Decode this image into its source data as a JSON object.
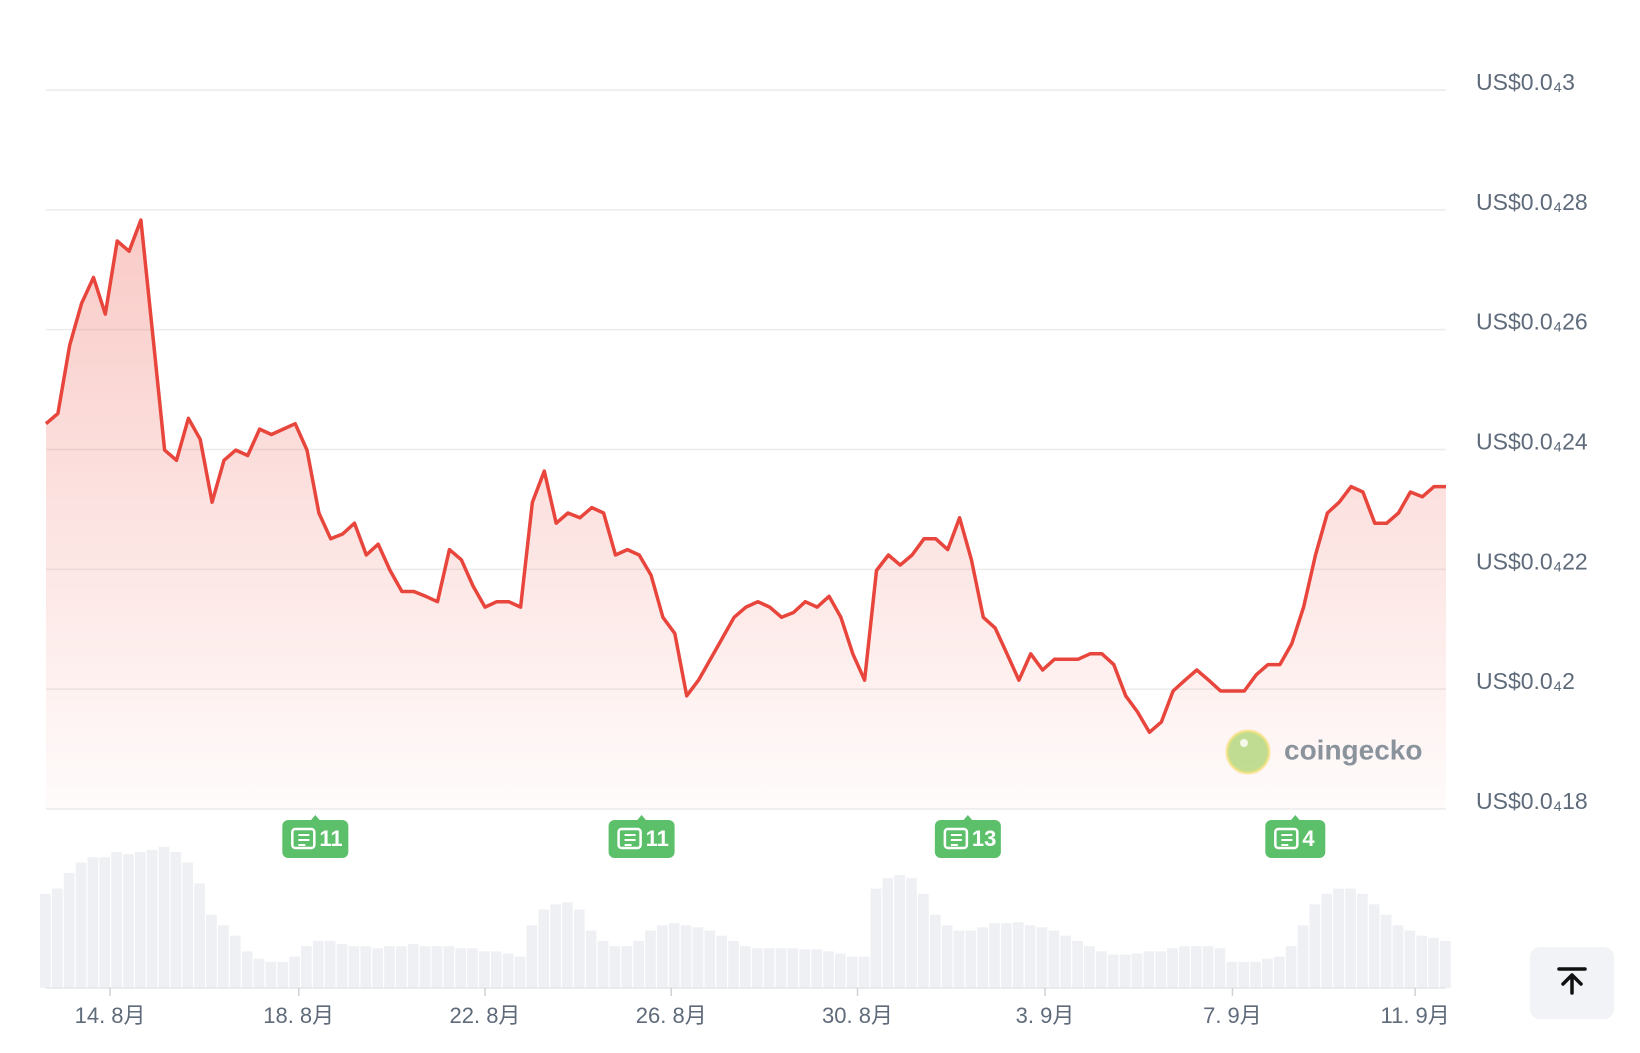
{
  "chart_data": {
    "type": "line",
    "xlim": [
      0,
      118
    ],
    "xticks": [
      {
        "value": 5.4,
        "label": "14. 8月"
      },
      {
        "value": 21.3,
        "label": "18. 8月"
      },
      {
        "value": 37,
        "label": "22. 8月"
      },
      {
        "value": 52.7,
        "label": "26. 8月"
      },
      {
        "value": 68.4,
        "label": "30. 8月"
      },
      {
        "value": 84.2,
        "label": "3. 9月"
      },
      {
        "value": 100,
        "label": "7. 9月"
      },
      {
        "value": 115.4,
        "label": "11. 9月"
      }
    ],
    "ylim": [
      1.8e-06,
      3e-06
    ],
    "yticks": [
      {
        "value": 3e-06,
        "label": "US$0.0₄3"
      },
      {
        "value": 2.8e-06,
        "label": "US$0.0₄28"
      },
      {
        "value": 2.6e-06,
        "label": "US$0.0₄26"
      },
      {
        "value": 2.4e-06,
        "label": "US$0.0₄24"
      },
      {
        "value": 2.2e-06,
        "label": "US$0.0₄22"
      },
      {
        "value": 2e-06,
        "label": "US$0.0₄2"
      },
      {
        "value": 1.8e-06,
        "label": "US$0.0₄18"
      }
    ],
    "grid": true,
    "color": "#e8453c",
    "values": [
      2.443e-06,
      2.46e-06,
      2.574e-06,
      2.644e-06,
      2.687e-06,
      2.626e-06,
      2.748e-06,
      2.731e-06,
      2.783e-06,
      2.591e-06,
      2.399e-06,
      2.382e-06,
      2.452e-06,
      2.417e-06,
      2.312e-06,
      2.382e-06,
      2.399e-06,
      2.39e-06,
      2.434e-06,
      2.425e-06,
      2.434e-06,
      2.443e-06,
      2.399e-06,
      2.294e-06,
      2.251e-06,
      2.259e-06,
      2.277e-06,
      2.224e-06,
      2.242e-06,
      2.198e-06,
      2.163e-06,
      2.163e-06,
      2.155e-06,
      2.146e-06,
      2.233e-06,
      2.216e-06,
      2.172e-06,
      2.137e-06,
      2.146e-06,
      2.146e-06,
      2.137e-06,
      2.312e-06,
      2.364e-06,
      2.277e-06,
      2.294e-06,
      2.286e-06,
      2.303e-06,
      2.294e-06,
      2.224e-06,
      2.233e-06,
      2.224e-06,
      2.19e-06,
      2.12e-06,
      2.093e-06,
      1.989e-06,
      2.015e-06,
      2.05e-06,
      2.085e-06,
      2.12e-06,
      2.137e-06,
      2.146e-06,
      2.137e-06,
      2.12e-06,
      2.128e-06,
      2.146e-06,
      2.137e-06,
      2.155e-06,
      2.12e-06,
      2.059e-06,
      2.015e-06,
      2.198e-06,
      2.224e-06,
      2.207e-06,
      2.224e-06,
      2.251e-06,
      2.251e-06,
      2.233e-06,
      2.286e-06,
      2.216e-06,
      2.12e-06,
      2.102e-06,
      2.059e-06,
      2.015e-06,
      2.059e-06,
      2.032e-06,
      2.05e-06,
      2.05e-06,
      2.05e-06,
      2.059e-06,
      2.059e-06,
      2.041e-06,
      1.989e-06,
      1.962e-06,
      1.928e-06,
      1.945e-06,
      1.997e-06,
      2.015e-06,
      2.032e-06,
      2.015e-06,
      1.997e-06,
      1.997e-06,
      1.997e-06,
      2.024e-06,
      2.041e-06,
      2.041e-06,
      2.076e-06,
      2.137e-06,
      2.224e-06,
      2.294e-06,
      2.312e-06,
      2.338e-06,
      2.329e-06,
      2.277e-06,
      2.277e-06,
      2.294e-06,
      2.329e-06,
      2.321e-06,
      2.338e-06,
      2.338e-06
    ],
    "volume": [
      90,
      95,
      110,
      120,
      125,
      125,
      130,
      128,
      130,
      132,
      135,
      130,
      120,
      100,
      70,
      60,
      50,
      35,
      28,
      25,
      25,
      30,
      40,
      45,
      45,
      42,
      40,
      40,
      38,
      40,
      40,
      42,
      40,
      40,
      40,
      38,
      38,
      35,
      35,
      33,
      30,
      60,
      75,
      80,
      82,
      75,
      55,
      45,
      40,
      40,
      45,
      55,
      60,
      62,
      60,
      58,
      55,
      50,
      45,
      40,
      38,
      38,
      38,
      38,
      37,
      37,
      35,
      33,
      30,
      30,
      95,
      105,
      108,
      105,
      90,
      70,
      60,
      55,
      55,
      58,
      62,
      62,
      63,
      60,
      58,
      55,
      50,
      45,
      40,
      35,
      32,
      32,
      33,
      35,
      35,
      38,
      40,
      40,
      40,
      38,
      25,
      25,
      25,
      28,
      30,
      40,
      60,
      80,
      90,
      95,
      95,
      90,
      80,
      70,
      60,
      55,
      50,
      48,
      45
    ],
    "news": [
      {
        "x": 22.7,
        "count": 11
      },
      {
        "x": 50.2,
        "count": 11
      },
      {
        "x": 77.7,
        "count": 13
      },
      {
        "x": 105.3,
        "count": 4
      }
    ],
    "watermark": "coingecko"
  }
}
